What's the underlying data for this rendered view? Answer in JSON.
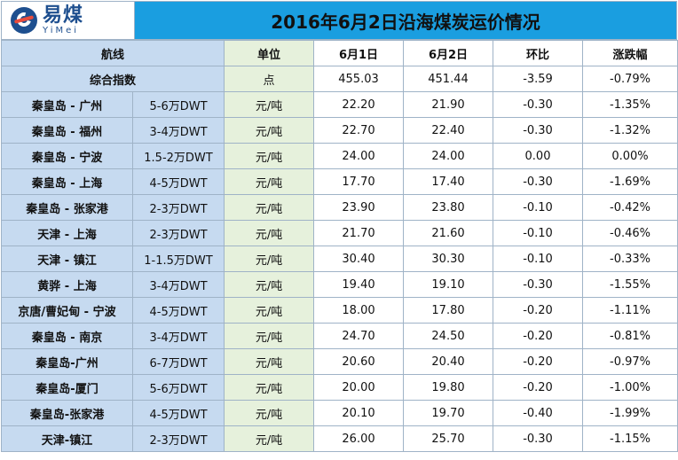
{
  "logo": {
    "cn": "易煤",
    "en": "YiMei"
  },
  "title": "2016年6月2日沿海煤炭运价情况",
  "headers": {
    "route": "航线",
    "unit": "单位",
    "d1": "6月1日",
    "d2": "6月2日",
    "chg": "环比",
    "pct": "涨跌幅"
  },
  "index_row": {
    "label": "综合指数",
    "unit": "点",
    "d1": "455.03",
    "d2": "451.44",
    "chg": "-3.59",
    "pct": "-0.79%"
  },
  "rows": [
    {
      "route": "秦皇岛 - 广州",
      "vessel": "5-6万DWT",
      "unit": "元/吨",
      "d1": "22.20",
      "d2": "21.90",
      "chg": "-0.30",
      "pct": "-1.35%"
    },
    {
      "route": "秦皇岛 - 福州",
      "vessel": "3-4万DWT",
      "unit": "元/吨",
      "d1": "22.70",
      "d2": "22.40",
      "chg": "-0.30",
      "pct": "-1.32%"
    },
    {
      "route": "秦皇岛 - 宁波",
      "vessel": "1.5-2万DWT",
      "unit": "元/吨",
      "d1": "24.00",
      "d2": "24.00",
      "chg": "0.00",
      "pct": "0.00%"
    },
    {
      "route": "秦皇岛 - 上海",
      "vessel": "4-5万DWT",
      "unit": "元/吨",
      "d1": "17.70",
      "d2": "17.40",
      "chg": "-0.30",
      "pct": "-1.69%"
    },
    {
      "route": "秦皇岛 - 张家港",
      "vessel": "2-3万DWT",
      "unit": "元/吨",
      "d1": "23.90",
      "d2": "23.80",
      "chg": "-0.10",
      "pct": "-0.42%"
    },
    {
      "route": "天津 - 上海",
      "vessel": "2-3万DWT",
      "unit": "元/吨",
      "d1": "21.70",
      "d2": "21.60",
      "chg": "-0.10",
      "pct": "-0.46%"
    },
    {
      "route": "天津 - 镇江",
      "vessel": "1-1.5万DWT",
      "unit": "元/吨",
      "d1": "30.40",
      "d2": "30.30",
      "chg": "-0.10",
      "pct": "-0.33%"
    },
    {
      "route": "黄骅 - 上海",
      "vessel": "3-4万DWT",
      "unit": "元/吨",
      "d1": "19.40",
      "d2": "19.10",
      "chg": "-0.30",
      "pct": "-1.55%"
    },
    {
      "route": "京唐/曹妃甸 - 宁波",
      "vessel": "4-5万DWT",
      "unit": "元/吨",
      "d1": "18.00",
      "d2": "17.80",
      "chg": "-0.20",
      "pct": "-1.11%"
    },
    {
      "route": "秦皇岛 - 南京",
      "vessel": "3-4万DWT",
      "unit": "元/吨",
      "d1": "24.70",
      "d2": "24.50",
      "chg": "-0.20",
      "pct": "-0.81%"
    },
    {
      "route": "秦皇岛-广州",
      "vessel": "6-7万DWT",
      "unit": "元/吨",
      "d1": "20.60",
      "d2": "20.40",
      "chg": "-0.20",
      "pct": "-0.97%"
    },
    {
      "route": "秦皇岛-厦门",
      "vessel": "5-6万DWT",
      "unit": "元/吨",
      "d1": "20.00",
      "d2": "19.80",
      "chg": "-0.20",
      "pct": "-1.00%"
    },
    {
      "route": "秦皇岛-张家港",
      "vessel": "4-5万DWT",
      "unit": "元/吨",
      "d1": "20.10",
      "d2": "19.70",
      "chg": "-0.40",
      "pct": "-1.99%"
    },
    {
      "route": "天津-镇江",
      "vessel": "2-3万DWT",
      "unit": "元/吨",
      "d1": "26.00",
      "d2": "25.70",
      "chg": "-0.30",
      "pct": "-1.15%"
    }
  ]
}
